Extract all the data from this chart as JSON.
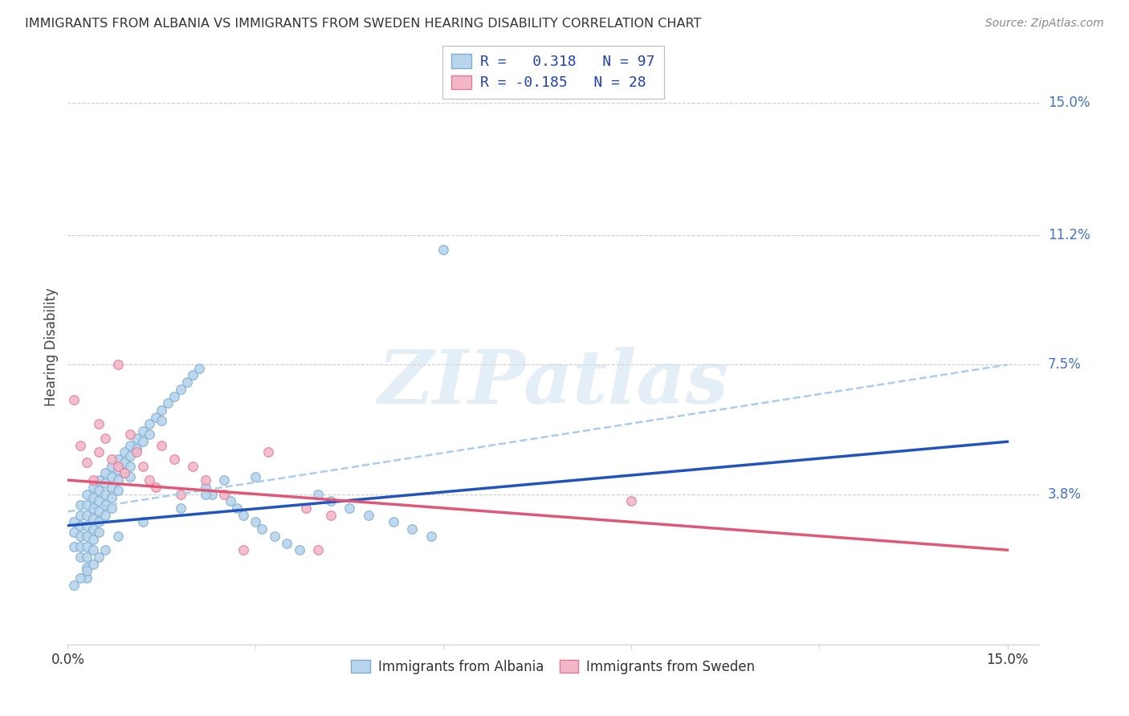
{
  "title": "IMMIGRANTS FROM ALBANIA VS IMMIGRANTS FROM SWEDEN HEARING DISABILITY CORRELATION CHART",
  "source": "Source: ZipAtlas.com",
  "ylabel": "Hearing Disability",
  "ytick_labels": [
    "3.8%",
    "7.5%",
    "11.2%",
    "15.0%"
  ],
  "ytick_values": [
    0.038,
    0.075,
    0.112,
    0.15
  ],
  "xtick_labels": [
    "0.0%",
    "15.0%"
  ],
  "xtick_values": [
    0.0,
    0.15
  ],
  "xlim": [
    0.0,
    0.155
  ],
  "ylim": [
    -0.005,
    0.165
  ],
  "albania_color": "#b8d4ea",
  "albania_edge": "#7aacd4",
  "sweden_color": "#f2b8c8",
  "sweden_edge": "#e07898",
  "albania_trend_color": "#2255bb",
  "sweden_trend_color": "#e05878",
  "dash_trend_color": "#aaccee",
  "watermark_text": "ZIPatlas",
  "legend_entry1_r": " 0.318",
  "legend_entry1_n": "97",
  "legend_entry2_r": "-0.185",
  "legend_entry2_n": "28",
  "albania_trend": [
    0.0,
    0.15,
    0.029,
    0.053
  ],
  "sweden_trend": [
    0.0,
    0.15,
    0.042,
    0.022
  ],
  "dash_trend": [
    0.0,
    0.15,
    0.033,
    0.075
  ],
  "albania_x": [
    0.001,
    0.001,
    0.001,
    0.002,
    0.002,
    0.002,
    0.002,
    0.002,
    0.002,
    0.003,
    0.003,
    0.003,
    0.003,
    0.003,
    0.003,
    0.003,
    0.003,
    0.003,
    0.004,
    0.004,
    0.004,
    0.004,
    0.004,
    0.004,
    0.004,
    0.005,
    0.005,
    0.005,
    0.005,
    0.005,
    0.005,
    0.006,
    0.006,
    0.006,
    0.006,
    0.006,
    0.007,
    0.007,
    0.007,
    0.007,
    0.007,
    0.008,
    0.008,
    0.008,
    0.008,
    0.009,
    0.009,
    0.009,
    0.01,
    0.01,
    0.01,
    0.01,
    0.011,
    0.011,
    0.012,
    0.012,
    0.013,
    0.013,
    0.014,
    0.015,
    0.015,
    0.016,
    0.017,
    0.018,
    0.019,
    0.02,
    0.021,
    0.022,
    0.023,
    0.025,
    0.026,
    0.027,
    0.028,
    0.03,
    0.031,
    0.033,
    0.035,
    0.037,
    0.04,
    0.042,
    0.045,
    0.048,
    0.052,
    0.055,
    0.058,
    0.06,
    0.03,
    0.022,
    0.018,
    0.012,
    0.008,
    0.006,
    0.005,
    0.004,
    0.003,
    0.002,
    0.001
  ],
  "albania_y": [
    0.03,
    0.027,
    0.023,
    0.035,
    0.032,
    0.029,
    0.026,
    0.023,
    0.02,
    0.038,
    0.035,
    0.032,
    0.029,
    0.026,
    0.023,
    0.02,
    0.017,
    0.014,
    0.04,
    0.037,
    0.034,
    0.031,
    0.028,
    0.025,
    0.022,
    0.042,
    0.039,
    0.036,
    0.033,
    0.03,
    0.027,
    0.044,
    0.041,
    0.038,
    0.035,
    0.032,
    0.046,
    0.043,
    0.04,
    0.037,
    0.034,
    0.048,
    0.045,
    0.042,
    0.039,
    0.05,
    0.047,
    0.044,
    0.052,
    0.049,
    0.046,
    0.043,
    0.054,
    0.051,
    0.056,
    0.053,
    0.058,
    0.055,
    0.06,
    0.062,
    0.059,
    0.064,
    0.066,
    0.068,
    0.07,
    0.072,
    0.074,
    0.04,
    0.038,
    0.042,
    0.036,
    0.034,
    0.032,
    0.03,
    0.028,
    0.026,
    0.024,
    0.022,
    0.038,
    0.036,
    0.034,
    0.032,
    0.03,
    0.028,
    0.026,
    0.108,
    0.043,
    0.038,
    0.034,
    0.03,
    0.026,
    0.022,
    0.02,
    0.018,
    0.016,
    0.014,
    0.012
  ],
  "sweden_x": [
    0.001,
    0.002,
    0.003,
    0.004,
    0.005,
    0.005,
    0.006,
    0.007,
    0.008,
    0.008,
    0.009,
    0.01,
    0.011,
    0.012,
    0.013,
    0.014,
    0.015,
    0.017,
    0.018,
    0.02,
    0.022,
    0.025,
    0.028,
    0.032,
    0.038,
    0.042,
    0.09,
    0.04
  ],
  "sweden_y": [
    0.065,
    0.052,
    0.047,
    0.042,
    0.058,
    0.05,
    0.054,
    0.048,
    0.046,
    0.075,
    0.044,
    0.055,
    0.05,
    0.046,
    0.042,
    0.04,
    0.052,
    0.048,
    0.038,
    0.046,
    0.042,
    0.038,
    0.022,
    0.05,
    0.034,
    0.032,
    0.036,
    0.022
  ],
  "marker_size": 70,
  "grid_color": "#cccccc",
  "grid_linestyle": "--",
  "grid_linewidth": 0.8,
  "spine_color": "#cccccc",
  "title_fontsize": 11.5,
  "axis_label_fontsize": 12,
  "tick_label_fontsize": 12,
  "legend_fontsize": 13,
  "source_fontsize": 10,
  "watermark_fontsize": 68
}
